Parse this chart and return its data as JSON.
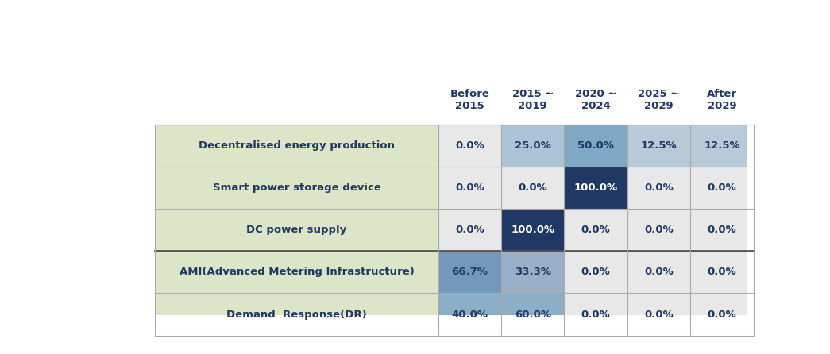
{
  "rows": [
    "Decentralised energy production",
    "Smart power storage device",
    "DC power supply",
    "AMI(Advanced Metering Infrastructure)",
    "Demand  Response(DR)"
  ],
  "cols": [
    "Before\n2015",
    "2015 ~\n2019",
    "2020 ~\n2024",
    "2025 ~\n2029",
    "After\n2029"
  ],
  "values": [
    [
      0.0,
      25.0,
      50.0,
      12.5,
      12.5
    ],
    [
      0.0,
      0.0,
      100.0,
      0.0,
      0.0
    ],
    [
      0.0,
      100.0,
      0.0,
      0.0,
      0.0
    ],
    [
      66.7,
      33.3,
      0.0,
      0.0,
      0.0
    ],
    [
      40.0,
      60.0,
      0.0,
      0.0,
      0.0
    ]
  ],
  "row_bg_color": "#dde5c8",
  "header_text_color": "#1f3864",
  "cell_text_color_dark": "#1f3864",
  "grid_line_color": "#aaaaaa",
  "thick_line_color": "#555555",
  "group_divider_after_row": 2,
  "cell_colors": [
    [
      "#e8e8e8",
      "#adc4d8",
      "#7fa8c4",
      "#b8c9d8",
      "#b8c9d8"
    ],
    [
      "#e8e8e8",
      "#e8e8e8",
      "#1f3864",
      "#e8e8e8",
      "#e8e8e8"
    ],
    [
      "#e8e8e8",
      "#1f3864",
      "#e8e8e8",
      "#e8e8e8",
      "#e8e8e8"
    ],
    [
      "#7398bb",
      "#9ab0c8",
      "#e8e8e8",
      "#e8e8e8",
      "#e8e8e8"
    ],
    [
      "#8daec7",
      "#8daec7",
      "#e8e8e8",
      "#e8e8e8",
      "#e8e8e8"
    ]
  ],
  "figsize": [
    10.45,
    4.46
  ],
  "dpi": 100
}
